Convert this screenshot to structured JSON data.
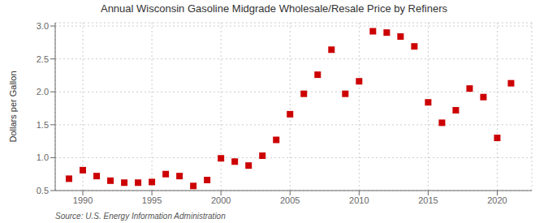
{
  "chart_data": {
    "type": "scatter",
    "title": "Annual Wisconsin Gasoline Midgrade Wholesale/Resale Price by Refiners",
    "ylabel": "Dollars per Gallon",
    "annotations": [
      "Source: U.S. Energy Information Administration"
    ],
    "x": [
      1989,
      1990,
      1991,
      1992,
      1993,
      1994,
      1995,
      1996,
      1997,
      1998,
      1999,
      2000,
      2001,
      2002,
      2003,
      2004,
      2005,
      2006,
      2007,
      2008,
      2009,
      2010,
      2011,
      2012,
      2013,
      2014,
      2015,
      2016,
      2017,
      2018,
      2019,
      2020,
      2021
    ],
    "values": [
      0.68,
      0.81,
      0.72,
      0.65,
      0.62,
      0.62,
      0.63,
      0.75,
      0.72,
      0.57,
      0.66,
      0.99,
      0.94,
      0.88,
      1.03,
      1.27,
      1.66,
      1.97,
      2.26,
      2.64,
      1.97,
      2.16,
      2.92,
      2.9,
      2.84,
      2.69,
      1.84,
      1.53,
      1.72,
      2.05,
      1.92,
      1.3,
      2.13
    ],
    "color": "#cc0000",
    "marker": "square",
    "xlim": [
      1988.0,
      2022.5
    ],
    "ylim": [
      0.5,
      3.05
    ],
    "xticks": [
      1990,
      1995,
      2000,
      2005,
      2010,
      2015,
      2020
    ],
    "yticks": [
      0.5,
      {
        "value": 1.0,
        "label": "1.0"
      },
      1.5,
      {
        "value": 2.0,
        "label": "2.0"
      },
      2.5,
      {
        "value": 3.0,
        "label": "3.0"
      }
    ],
    "grid": true
  }
}
